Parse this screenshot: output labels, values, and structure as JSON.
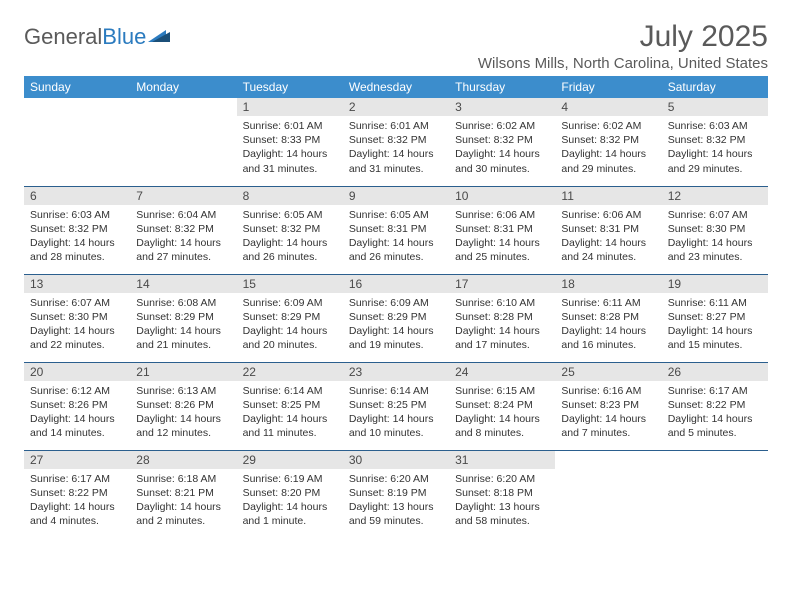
{
  "logo": {
    "text1": "General",
    "text2": "Blue"
  },
  "title": "July 2025",
  "location": "Wilsons Mills, North Carolina, United States",
  "colors": {
    "header_bg": "#3c8dcc",
    "header_text": "#ffffff",
    "daynum_bg": "#e6e6e6",
    "border": "#2b5f8e",
    "text": "#333333",
    "title_text": "#5a5a5a"
  },
  "weekdays": [
    "Sunday",
    "Monday",
    "Tuesday",
    "Wednesday",
    "Thursday",
    "Friday",
    "Saturday"
  ],
  "weeks": [
    [
      null,
      null,
      {
        "n": "1",
        "sr": "Sunrise: 6:01 AM",
        "ss": "Sunset: 8:33 PM",
        "d1": "Daylight: 14 hours",
        "d2": "and 31 minutes."
      },
      {
        "n": "2",
        "sr": "Sunrise: 6:01 AM",
        "ss": "Sunset: 8:32 PM",
        "d1": "Daylight: 14 hours",
        "d2": "and 31 minutes."
      },
      {
        "n": "3",
        "sr": "Sunrise: 6:02 AM",
        "ss": "Sunset: 8:32 PM",
        "d1": "Daylight: 14 hours",
        "d2": "and 30 minutes."
      },
      {
        "n": "4",
        "sr": "Sunrise: 6:02 AM",
        "ss": "Sunset: 8:32 PM",
        "d1": "Daylight: 14 hours",
        "d2": "and 29 minutes."
      },
      {
        "n": "5",
        "sr": "Sunrise: 6:03 AM",
        "ss": "Sunset: 8:32 PM",
        "d1": "Daylight: 14 hours",
        "d2": "and 29 minutes."
      }
    ],
    [
      {
        "n": "6",
        "sr": "Sunrise: 6:03 AM",
        "ss": "Sunset: 8:32 PM",
        "d1": "Daylight: 14 hours",
        "d2": "and 28 minutes."
      },
      {
        "n": "7",
        "sr": "Sunrise: 6:04 AM",
        "ss": "Sunset: 8:32 PM",
        "d1": "Daylight: 14 hours",
        "d2": "and 27 minutes."
      },
      {
        "n": "8",
        "sr": "Sunrise: 6:05 AM",
        "ss": "Sunset: 8:32 PM",
        "d1": "Daylight: 14 hours",
        "d2": "and 26 minutes."
      },
      {
        "n": "9",
        "sr": "Sunrise: 6:05 AM",
        "ss": "Sunset: 8:31 PM",
        "d1": "Daylight: 14 hours",
        "d2": "and 26 minutes."
      },
      {
        "n": "10",
        "sr": "Sunrise: 6:06 AM",
        "ss": "Sunset: 8:31 PM",
        "d1": "Daylight: 14 hours",
        "d2": "and 25 minutes."
      },
      {
        "n": "11",
        "sr": "Sunrise: 6:06 AM",
        "ss": "Sunset: 8:31 PM",
        "d1": "Daylight: 14 hours",
        "d2": "and 24 minutes."
      },
      {
        "n": "12",
        "sr": "Sunrise: 6:07 AM",
        "ss": "Sunset: 8:30 PM",
        "d1": "Daylight: 14 hours",
        "d2": "and 23 minutes."
      }
    ],
    [
      {
        "n": "13",
        "sr": "Sunrise: 6:07 AM",
        "ss": "Sunset: 8:30 PM",
        "d1": "Daylight: 14 hours",
        "d2": "and 22 minutes."
      },
      {
        "n": "14",
        "sr": "Sunrise: 6:08 AM",
        "ss": "Sunset: 8:29 PM",
        "d1": "Daylight: 14 hours",
        "d2": "and 21 minutes."
      },
      {
        "n": "15",
        "sr": "Sunrise: 6:09 AM",
        "ss": "Sunset: 8:29 PM",
        "d1": "Daylight: 14 hours",
        "d2": "and 20 minutes."
      },
      {
        "n": "16",
        "sr": "Sunrise: 6:09 AM",
        "ss": "Sunset: 8:29 PM",
        "d1": "Daylight: 14 hours",
        "d2": "and 19 minutes."
      },
      {
        "n": "17",
        "sr": "Sunrise: 6:10 AM",
        "ss": "Sunset: 8:28 PM",
        "d1": "Daylight: 14 hours",
        "d2": "and 17 minutes."
      },
      {
        "n": "18",
        "sr": "Sunrise: 6:11 AM",
        "ss": "Sunset: 8:28 PM",
        "d1": "Daylight: 14 hours",
        "d2": "and 16 minutes."
      },
      {
        "n": "19",
        "sr": "Sunrise: 6:11 AM",
        "ss": "Sunset: 8:27 PM",
        "d1": "Daylight: 14 hours",
        "d2": "and 15 minutes."
      }
    ],
    [
      {
        "n": "20",
        "sr": "Sunrise: 6:12 AM",
        "ss": "Sunset: 8:26 PM",
        "d1": "Daylight: 14 hours",
        "d2": "and 14 minutes."
      },
      {
        "n": "21",
        "sr": "Sunrise: 6:13 AM",
        "ss": "Sunset: 8:26 PM",
        "d1": "Daylight: 14 hours",
        "d2": "and 12 minutes."
      },
      {
        "n": "22",
        "sr": "Sunrise: 6:14 AM",
        "ss": "Sunset: 8:25 PM",
        "d1": "Daylight: 14 hours",
        "d2": "and 11 minutes."
      },
      {
        "n": "23",
        "sr": "Sunrise: 6:14 AM",
        "ss": "Sunset: 8:25 PM",
        "d1": "Daylight: 14 hours",
        "d2": "and 10 minutes."
      },
      {
        "n": "24",
        "sr": "Sunrise: 6:15 AM",
        "ss": "Sunset: 8:24 PM",
        "d1": "Daylight: 14 hours",
        "d2": "and 8 minutes."
      },
      {
        "n": "25",
        "sr": "Sunrise: 6:16 AM",
        "ss": "Sunset: 8:23 PM",
        "d1": "Daylight: 14 hours",
        "d2": "and 7 minutes."
      },
      {
        "n": "26",
        "sr": "Sunrise: 6:17 AM",
        "ss": "Sunset: 8:22 PM",
        "d1": "Daylight: 14 hours",
        "d2": "and 5 minutes."
      }
    ],
    [
      {
        "n": "27",
        "sr": "Sunrise: 6:17 AM",
        "ss": "Sunset: 8:22 PM",
        "d1": "Daylight: 14 hours",
        "d2": "and 4 minutes."
      },
      {
        "n": "28",
        "sr": "Sunrise: 6:18 AM",
        "ss": "Sunset: 8:21 PM",
        "d1": "Daylight: 14 hours",
        "d2": "and 2 minutes."
      },
      {
        "n": "29",
        "sr": "Sunrise: 6:19 AM",
        "ss": "Sunset: 8:20 PM",
        "d1": "Daylight: 14 hours",
        "d2": "and 1 minute."
      },
      {
        "n": "30",
        "sr": "Sunrise: 6:20 AM",
        "ss": "Sunset: 8:19 PM",
        "d1": "Daylight: 13 hours",
        "d2": "and 59 minutes."
      },
      {
        "n": "31",
        "sr": "Sunrise: 6:20 AM",
        "ss": "Sunset: 8:18 PM",
        "d1": "Daylight: 13 hours",
        "d2": "and 58 minutes."
      },
      null,
      null
    ]
  ]
}
